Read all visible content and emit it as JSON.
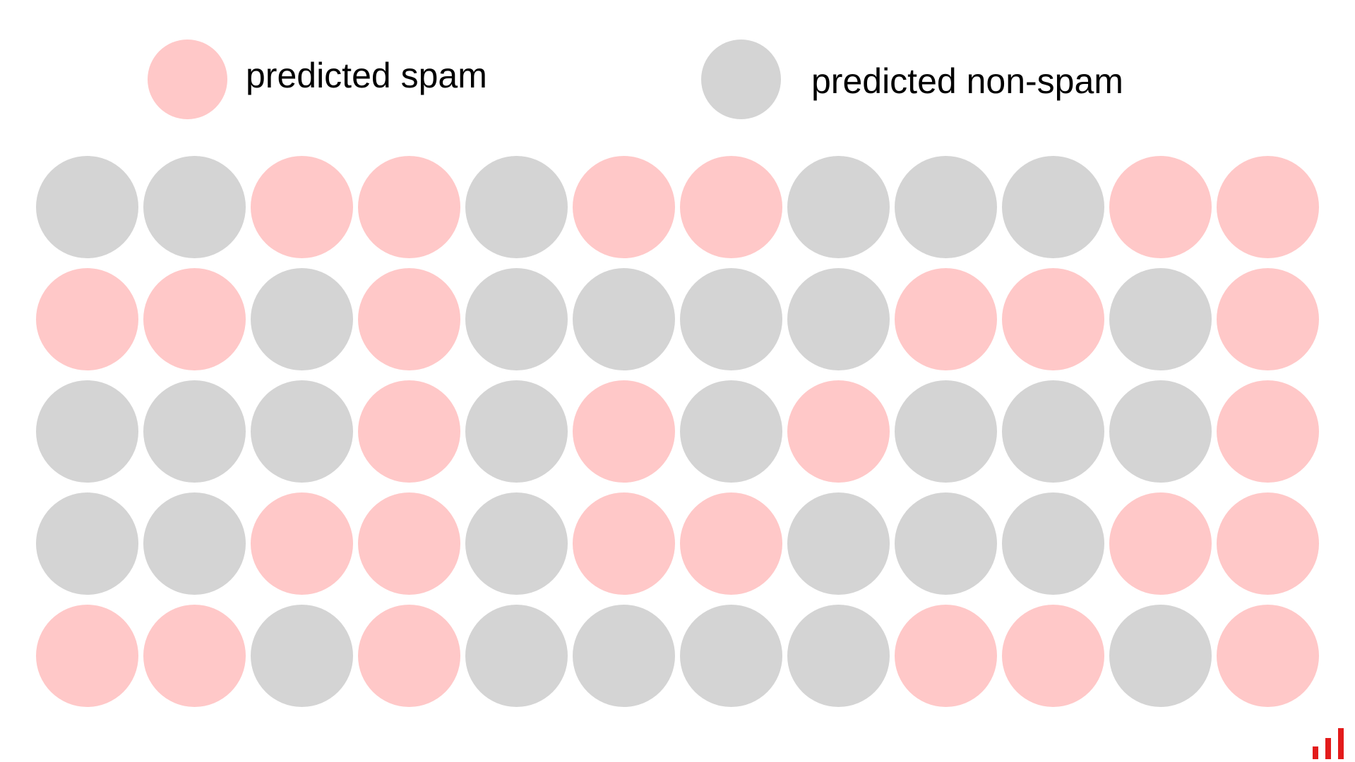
{
  "colors": {
    "spam": "#ffc8c8",
    "non_spam": "#d4d4d4",
    "logo": "#e31b1b"
  },
  "legend": [
    {
      "key": "spam",
      "label": "predicted spam"
    },
    {
      "key": "non_spam",
      "label": "predicted non-spam"
    }
  ],
  "grid": {
    "rows": 5,
    "columns": 12,
    "cells": [
      [
        "non_spam",
        "non_spam",
        "spam",
        "spam",
        "non_spam",
        "spam",
        "spam",
        "non_spam",
        "non_spam",
        "non_spam",
        "spam",
        "spam"
      ],
      [
        "spam",
        "spam",
        "non_spam",
        "spam",
        "non_spam",
        "non_spam",
        "non_spam",
        "non_spam",
        "spam",
        "spam",
        "non_spam",
        "spam"
      ],
      [
        "non_spam",
        "non_spam",
        "non_spam",
        "spam",
        "non_spam",
        "spam",
        "non_spam",
        "spam",
        "non_spam",
        "non_spam",
        "non_spam",
        "spam"
      ],
      [
        "non_spam",
        "non_spam",
        "spam",
        "spam",
        "non_spam",
        "spam",
        "spam",
        "non_spam",
        "non_spam",
        "non_spam",
        "spam",
        "spam"
      ],
      [
        "spam",
        "spam",
        "non_spam",
        "spam",
        "non_spam",
        "non_spam",
        "non_spam",
        "non_spam",
        "spam",
        "spam",
        "non_spam",
        "spam"
      ]
    ]
  },
  "logo_icon": "bar-logo-icon"
}
